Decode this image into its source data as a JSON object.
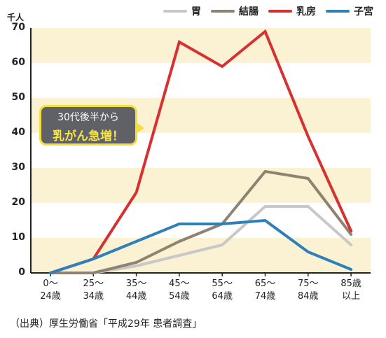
{
  "chart_data": {
    "type": "line",
    "unit": "千人",
    "categories": [
      "0〜\n24歳",
      "25〜\n34歳",
      "35〜\n44歳",
      "45〜\n54歳",
      "55〜\n64歳",
      "65〜\n74歳",
      "75〜\n84歳",
      "85歳\n以上"
    ],
    "y_ticks": [
      "0",
      "10",
      "20",
      "30",
      "40",
      "50",
      "60",
      "70"
    ],
    "ylim": [
      0,
      70
    ],
    "series": [
      {
        "name": "胃",
        "color": "#c8c8c8",
        "values": [
          0,
          0,
          2,
          5,
          8,
          19,
          19,
          8
        ]
      },
      {
        "name": "結腸",
        "color": "#8f8270",
        "values": [
          0,
          0,
          3,
          9,
          14,
          29,
          27,
          11
        ]
      },
      {
        "name": "乳房",
        "color": "#d63031",
        "values": [
          0,
          4,
          23,
          66,
          59,
          69,
          39,
          12
        ]
      },
      {
        "name": "子宮",
        "color": "#2f7fba",
        "values": [
          0,
          4,
          9,
          14,
          14,
          15,
          6,
          1
        ]
      }
    ],
    "band_color": "#fbf2d3",
    "legend_position": "top-right",
    "annotation": {
      "line1": "30代後半から",
      "line2": "乳がん急増！"
    }
  },
  "source": "（出典）厚生労働省「平成29年 患者調査」"
}
